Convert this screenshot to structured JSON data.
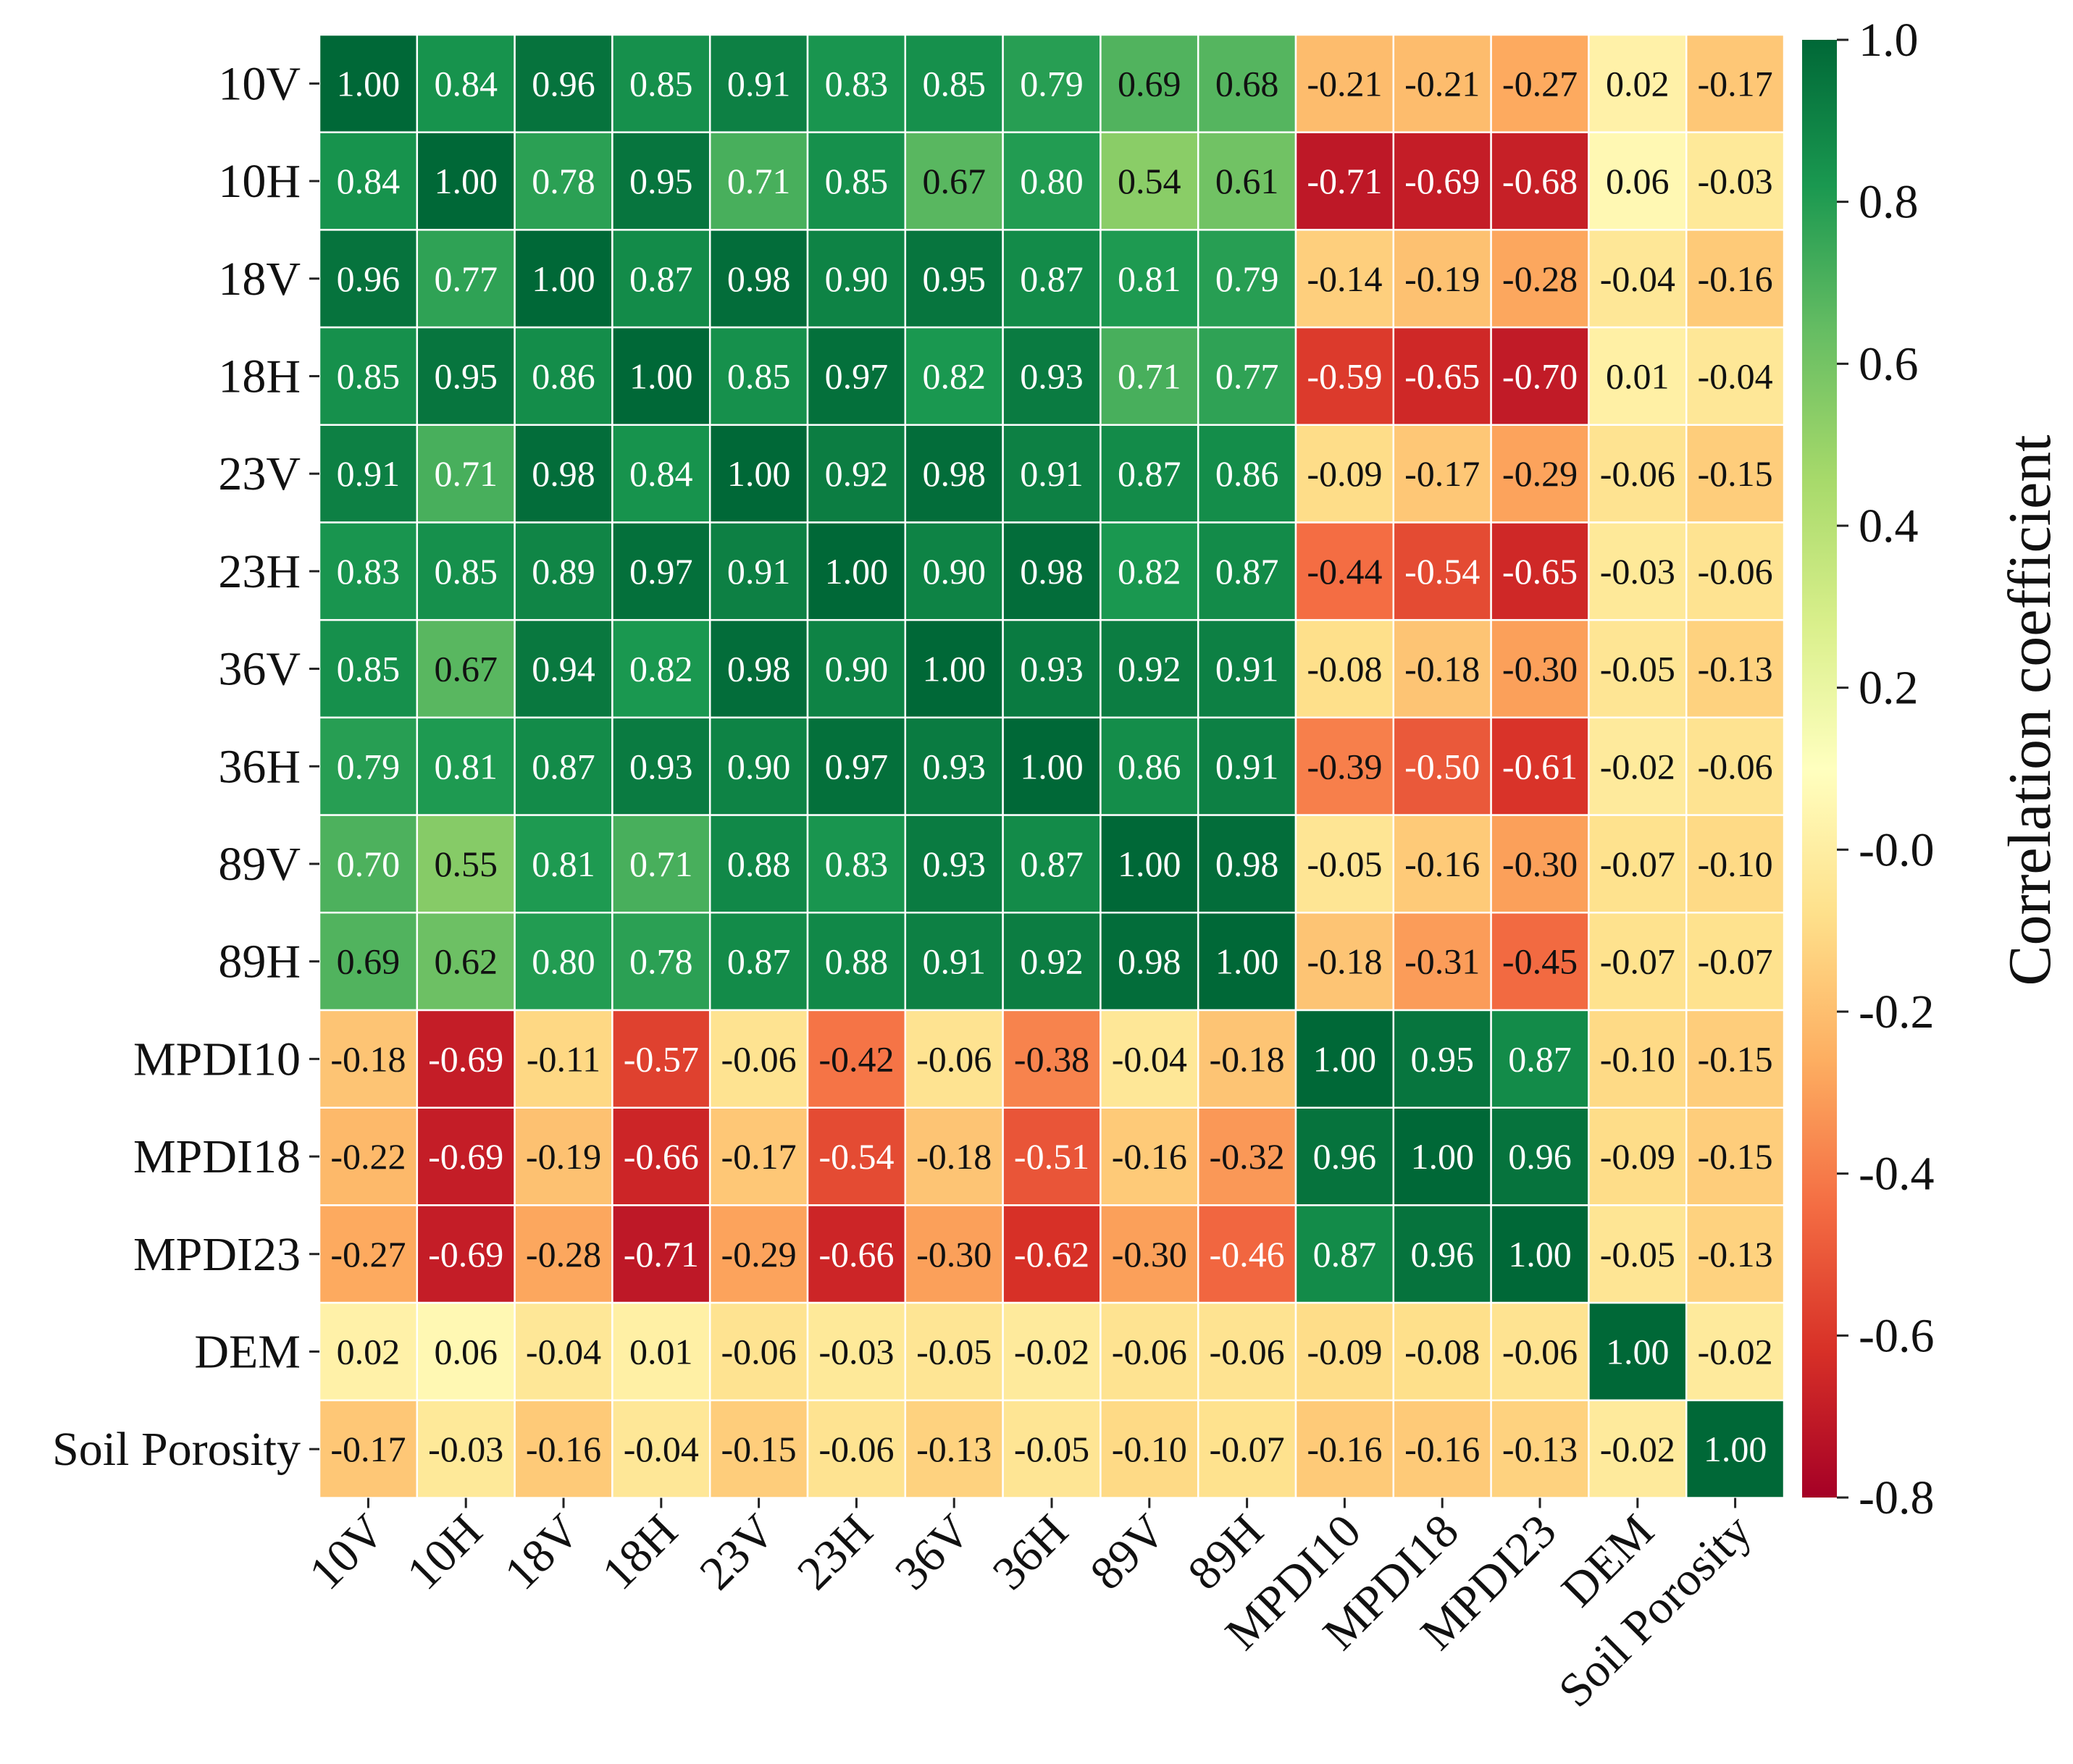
{
  "chart_data": {
    "type": "heatmap",
    "title": "",
    "xlabel": "",
    "ylabel": "",
    "row_labels": [
      "10V",
      "10H",
      "18V",
      "18H",
      "23V",
      "23H",
      "36V",
      "36H",
      "89V",
      "89H",
      "MPDI10",
      "MPDI18",
      "MPDI23",
      "DEM",
      "Soil Porosity"
    ],
    "col_labels": [
      "10V",
      "10H",
      "18V",
      "18H",
      "23V",
      "23H",
      "36V",
      "36H",
      "89V",
      "89H",
      "MPDI10",
      "MPDI18",
      "MPDI23",
      "DEM",
      "Soil Porosity"
    ],
    "values": [
      [
        "1.00",
        "0.84",
        "0.96",
        "0.85",
        "0.91",
        "0.83",
        "0.85",
        "0.79",
        "0.69",
        "0.68",
        "-0.21",
        "-0.21",
        "-0.27",
        "0.02",
        "-0.17"
      ],
      [
        "0.84",
        "1.00",
        "0.78",
        "0.95",
        "0.71",
        "0.85",
        "0.67",
        "0.80",
        "0.54",
        "0.61",
        "-0.71",
        "-0.69",
        "-0.68",
        "0.06",
        "-0.03"
      ],
      [
        "0.96",
        "0.77",
        "1.00",
        "0.87",
        "0.98",
        "0.90",
        "0.95",
        "0.87",
        "0.81",
        "0.79",
        "-0.14",
        "-0.19",
        "-0.28",
        "-0.04",
        "-0.16"
      ],
      [
        "0.85",
        "0.95",
        "0.86",
        "1.00",
        "0.85",
        "0.97",
        "0.82",
        "0.93",
        "0.71",
        "0.77",
        "-0.59",
        "-0.65",
        "-0.70",
        "0.01",
        "-0.04"
      ],
      [
        "0.91",
        "0.71",
        "0.98",
        "0.84",
        "1.00",
        "0.92",
        "0.98",
        "0.91",
        "0.87",
        "0.86",
        "-0.09",
        "-0.17",
        "-0.29",
        "-0.06",
        "-0.15"
      ],
      [
        "0.83",
        "0.85",
        "0.89",
        "0.97",
        "0.91",
        "1.00",
        "0.90",
        "0.98",
        "0.82",
        "0.87",
        "-0.44",
        "-0.54",
        "-0.65",
        "-0.03",
        "-0.06"
      ],
      [
        "0.85",
        "0.67",
        "0.94",
        "0.82",
        "0.98",
        "0.90",
        "1.00",
        "0.93",
        "0.92",
        "0.91",
        "-0.08",
        "-0.18",
        "-0.30",
        "-0.05",
        "-0.13"
      ],
      [
        "0.79",
        "0.81",
        "0.87",
        "0.93",
        "0.90",
        "0.97",
        "0.93",
        "1.00",
        "0.86",
        "0.91",
        "-0.39",
        "-0.50",
        "-0.61",
        "-0.02",
        "-0.06"
      ],
      [
        "0.70",
        "0.55",
        "0.81",
        "0.71",
        "0.88",
        "0.83",
        "0.93",
        "0.87",
        "1.00",
        "0.98",
        "-0.05",
        "-0.16",
        "-0.30",
        "-0.07",
        "-0.10"
      ],
      [
        "0.69",
        "0.62",
        "0.80",
        "0.78",
        "0.87",
        "0.88",
        "0.91",
        "0.92",
        "0.98",
        "1.00",
        "-0.18",
        "-0.31",
        "-0.45",
        "-0.07",
        "-0.07"
      ],
      [
        "-0.18",
        "-0.69",
        "-0.11",
        "-0.57",
        "-0.06",
        "-0.42",
        "-0.06",
        "-0.38",
        "-0.04",
        "-0.18",
        "1.00",
        "0.95",
        "0.87",
        "-0.10",
        "-0.15"
      ],
      [
        "-0.22",
        "-0.69",
        "-0.19",
        "-0.66",
        "-0.17",
        "-0.54",
        "-0.18",
        "-0.51",
        "-0.16",
        "-0.32",
        "0.96",
        "1.00",
        "0.96",
        "-0.09",
        "-0.15"
      ],
      [
        "-0.27",
        "-0.69",
        "-0.28",
        "-0.71",
        "-0.29",
        "-0.66",
        "-0.30",
        "-0.62",
        "-0.30",
        "-0.46",
        "0.87",
        "0.96",
        "1.00",
        "-0.05",
        "-0.13"
      ],
      [
        "0.02",
        "0.06",
        "-0.04",
        "0.01",
        "-0.06",
        "-0.03",
        "-0.05",
        "-0.02",
        "-0.06",
        "-0.06",
        "-0.09",
        "-0.08",
        "-0.06",
        "1.00",
        "-0.02"
      ],
      [
        "-0.17",
        "-0.03",
        "-0.16",
        "-0.04",
        "-0.15",
        "-0.06",
        "-0.13",
        "-0.05",
        "-0.10",
        "-0.07",
        "-0.16",
        "-0.16",
        "-0.13",
        "-0.02",
        "1.00"
      ]
    ],
    "colorbar": {
      "label": "Correlation coefficient",
      "range": [
        -0.8,
        1.0
      ],
      "ticks": [
        1.0,
        0.8,
        0.6,
        0.4,
        0.2,
        0.0,
        -0.2,
        -0.4,
        -0.6,
        -0.8
      ],
      "tick_labels": [
        "1.0",
        "0.8",
        "0.6",
        "0.4",
        "0.2",
        "-0.0",
        "-0.2",
        "-0.4",
        "-0.6",
        "-0.8"
      ],
      "colormap": "RdYlGn"
    },
    "colors": {
      "stops": [
        "#a50026",
        "#d73027",
        "#f46d43",
        "#fdae61",
        "#fee08b",
        "#ffffbf",
        "#d9ef8b",
        "#a6d96a",
        "#66bd63",
        "#1a9850",
        "#006837"
      ],
      "cell_border": "#ffffff",
      "text_dark": "#111111",
      "text_light": "#ffffff"
    }
  }
}
